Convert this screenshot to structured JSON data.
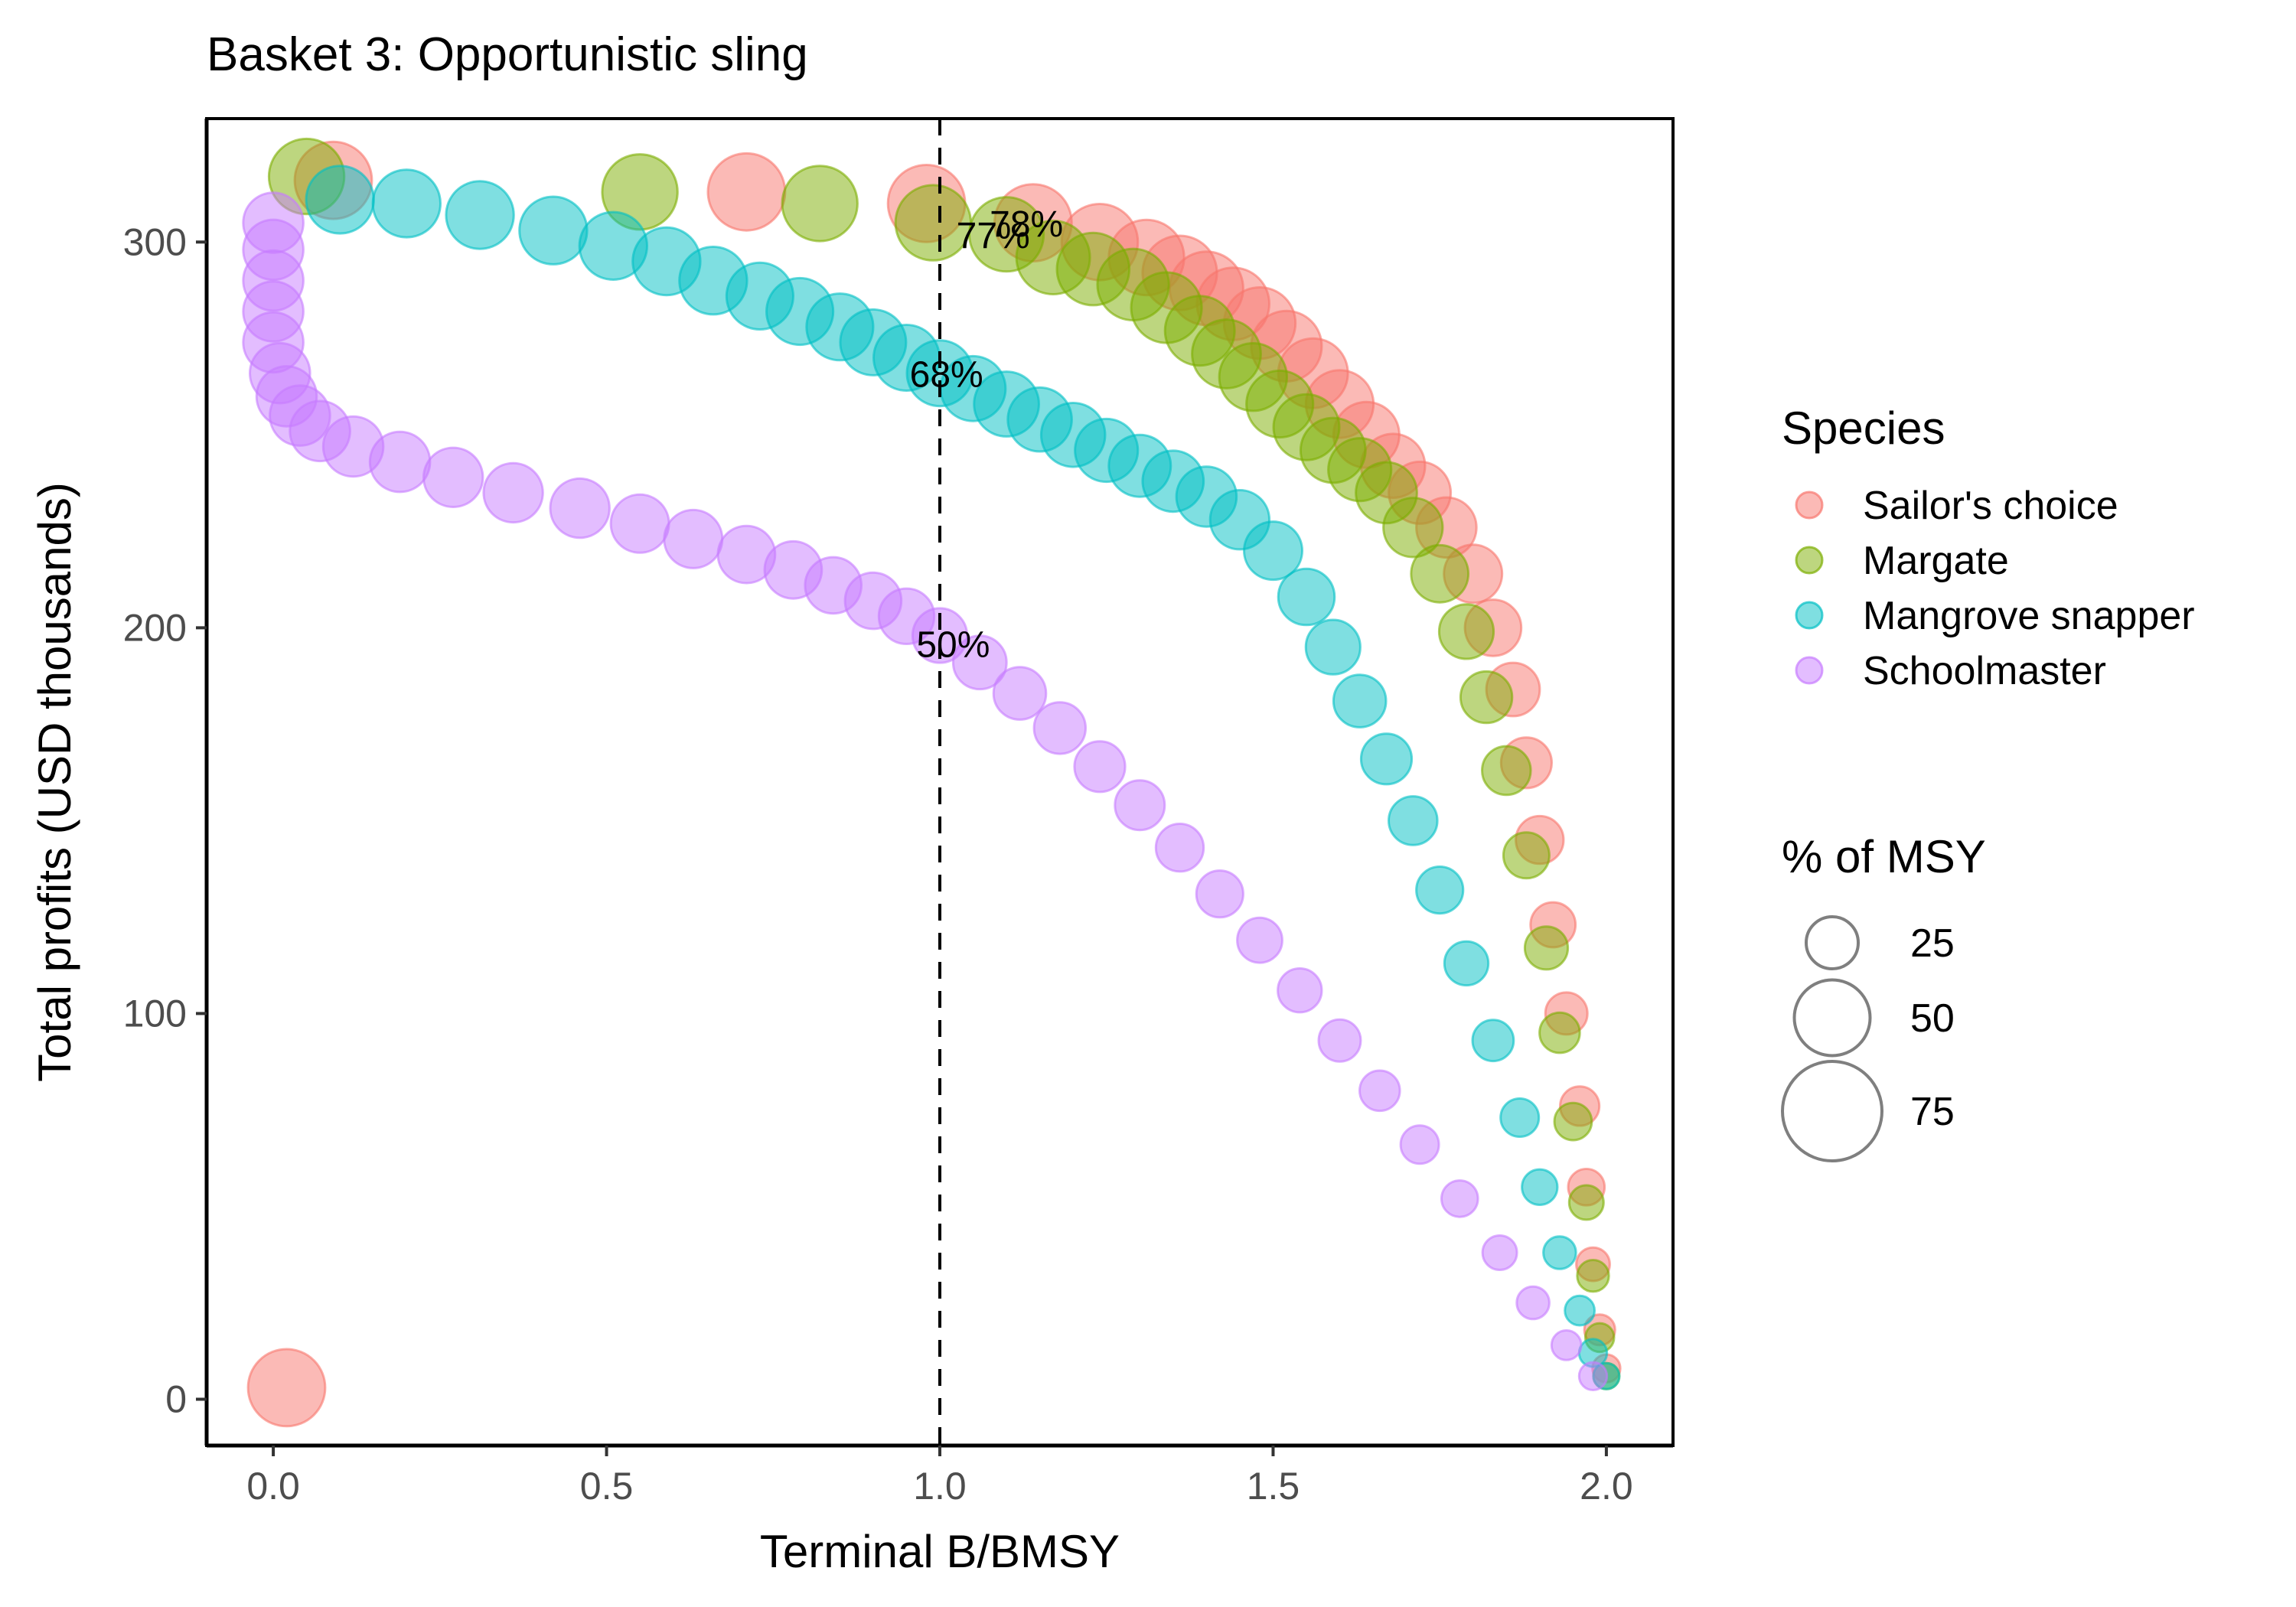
{
  "chart_data": {
    "type": "scatter",
    "title": "Basket 3: Opportunistic sling",
    "xlabel": "Terminal B/BMSY",
    "ylabel": "Total profits (USD thousands)",
    "xlim": [
      -0.1,
      2.1
    ],
    "ylim": [
      -12,
      332
    ],
    "x_ticks": [
      0.0,
      0.5,
      1.0,
      1.5,
      2.0
    ],
    "x_tick_labels": [
      "0.0",
      "0.5",
      "1.0",
      "1.5",
      "2.0"
    ],
    "y_ticks": [
      0,
      100,
      200,
      300
    ],
    "y_tick_labels": [
      "0",
      "100",
      "200",
      "300"
    ],
    "grid": false,
    "reference_line": {
      "x": 1.0,
      "style": "dashed",
      "color": "#000000"
    },
    "legend_placement": "right",
    "color_legend": {
      "title": "Species",
      "entries": [
        "Sailor's choice",
        "Margate",
        "Mangrove snapper",
        "Schoolmaster"
      ]
    },
    "size_legend": {
      "title": "% of MSY",
      "entries": [
        25,
        50,
        75
      ]
    },
    "series": [
      {
        "name": "Sailor's choice",
        "color": "#F8766D",
        "x": [
          0.02,
          0.09,
          0.71,
          0.98,
          1.14,
          1.24,
          1.31,
          1.36,
          1.4,
          1.44,
          1.48,
          1.52,
          1.56,
          1.6,
          1.64,
          1.68,
          1.72,
          1.76,
          1.8,
          1.83,
          1.86,
          1.88,
          1.9,
          1.92,
          1.94,
          1.96,
          1.97,
          1.98,
          1.99,
          2.0
        ],
        "y": [
          3,
          316,
          313,
          310,
          305,
          300,
          296,
          292,
          288,
          284,
          279,
          273,
          266,
          258,
          250,
          242,
          235,
          226,
          214,
          200,
          184,
          165,
          145,
          123,
          100,
          76,
          55,
          35,
          18,
          8
        ],
        "msy_pct": [
          62,
          62,
          62,
          62,
          62,
          61,
          60,
          59,
          58,
          57,
          56,
          55,
          54,
          52,
          50,
          48,
          46,
          44,
          42,
          40,
          37,
          34,
          31,
          28,
          25,
          22,
          19,
          16,
          13,
          10
        ]
      },
      {
        "name": "Margate",
        "color": "#7CAE00",
        "x": [
          0.05,
          0.55,
          0.82,
          0.99,
          1.1,
          1.17,
          1.23,
          1.29,
          1.34,
          1.39,
          1.43,
          1.47,
          1.51,
          1.55,
          1.59,
          1.63,
          1.67,
          1.71,
          1.75,
          1.79,
          1.82,
          1.85,
          1.88,
          1.91,
          1.93,
          1.95,
          1.97,
          1.98,
          1.99,
          2.0
        ],
        "y": [
          317,
          313,
          310,
          305,
          302,
          296,
          293,
          289,
          283,
          277,
          271,
          265,
          258,
          252,
          246,
          241,
          235,
          226,
          214,
          199,
          182,
          163,
          141,
          117,
          95,
          72,
          51,
          32,
          16,
          6
        ],
        "msy_pct": [
          60,
          60,
          60,
          60,
          59,
          58,
          57,
          56,
          55,
          54,
          53,
          52,
          51,
          50,
          49,
          47,
          45,
          43,
          41,
          38,
          35,
          32,
          29,
          26,
          23,
          20,
          17,
          14,
          11,
          8
        ]
      },
      {
        "name": "Mangrove snapper",
        "color": "#00BFC4",
        "x": [
          0.1,
          0.2,
          0.31,
          0.42,
          0.51,
          0.59,
          0.66,
          0.73,
          0.79,
          0.85,
          0.9,
          0.95,
          1.0,
          1.05,
          1.1,
          1.15,
          1.2,
          1.25,
          1.3,
          1.35,
          1.4,
          1.45,
          1.5,
          1.55,
          1.59,
          1.63,
          1.67,
          1.71,
          1.75,
          1.79,
          1.83,
          1.87,
          1.9,
          1.93,
          1.96,
          1.98,
          2.0
        ],
        "y": [
          311,
          310,
          307,
          303,
          299,
          295,
          290,
          286,
          282,
          278,
          274,
          270,
          266,
          262,
          258,
          254,
          250,
          246,
          242,
          238,
          234,
          228,
          220,
          208,
          195,
          181,
          166,
          150,
          132,
          113,
          93,
          73,
          55,
          38,
          23,
          12,
          6
        ],
        "msy_pct": [
          52,
          52,
          52,
          52,
          52,
          52,
          52,
          51,
          51,
          51,
          50,
          50,
          50,
          49,
          49,
          48,
          48,
          47,
          46,
          45,
          44,
          43,
          42,
          40,
          38,
          36,
          34,
          32,
          30,
          27,
          24,
          21,
          18,
          15,
          12,
          10,
          8
        ]
      },
      {
        "name": "Schoolmaster",
        "color": "#C77CFF",
        "x": [
          0.0,
          0.0,
          0.0,
          0.0,
          0.0,
          0.01,
          0.02,
          0.04,
          0.07,
          0.12,
          0.19,
          0.27,
          0.36,
          0.46,
          0.55,
          0.63,
          0.71,
          0.78,
          0.84,
          0.9,
          0.95,
          1.0,
          1.06,
          1.12,
          1.18,
          1.24,
          1.3,
          1.36,
          1.42,
          1.48,
          1.54,
          1.6,
          1.66,
          1.72,
          1.78,
          1.84,
          1.89,
          1.94,
          1.98
        ],
        "y": [
          305,
          298,
          290,
          282,
          274,
          266,
          260,
          255,
          251,
          247,
          243,
          239,
          235,
          231,
          227,
          223,
          219,
          215,
          211,
          207,
          203,
          198,
          191,
          183,
          174,
          164,
          154,
          143,
          131,
          119,
          106,
          93,
          80,
          66,
          52,
          38,
          25,
          14,
          6
        ],
        "msy_pct": [
          44,
          44,
          44,
          44,
          44,
          44,
          44,
          44,
          44,
          44,
          44,
          43,
          43,
          43,
          42,
          42,
          41,
          41,
          40,
          40,
          39,
          38,
          37,
          36,
          35,
          34,
          33,
          31,
          30,
          28,
          27,
          25,
          23,
          21,
          19,
          17,
          15,
          12,
          10
        ]
      }
    ],
    "annotations": [
      {
        "text": "78%",
        "x": 1.13,
        "y": 304
      },
      {
        "text": "77%",
        "x": 1.08,
        "y": 301
      },
      {
        "text": "68%",
        "x": 1.01,
        "y": 265
      },
      {
        "text": "50%",
        "x": 1.02,
        "y": 195
      }
    ]
  }
}
